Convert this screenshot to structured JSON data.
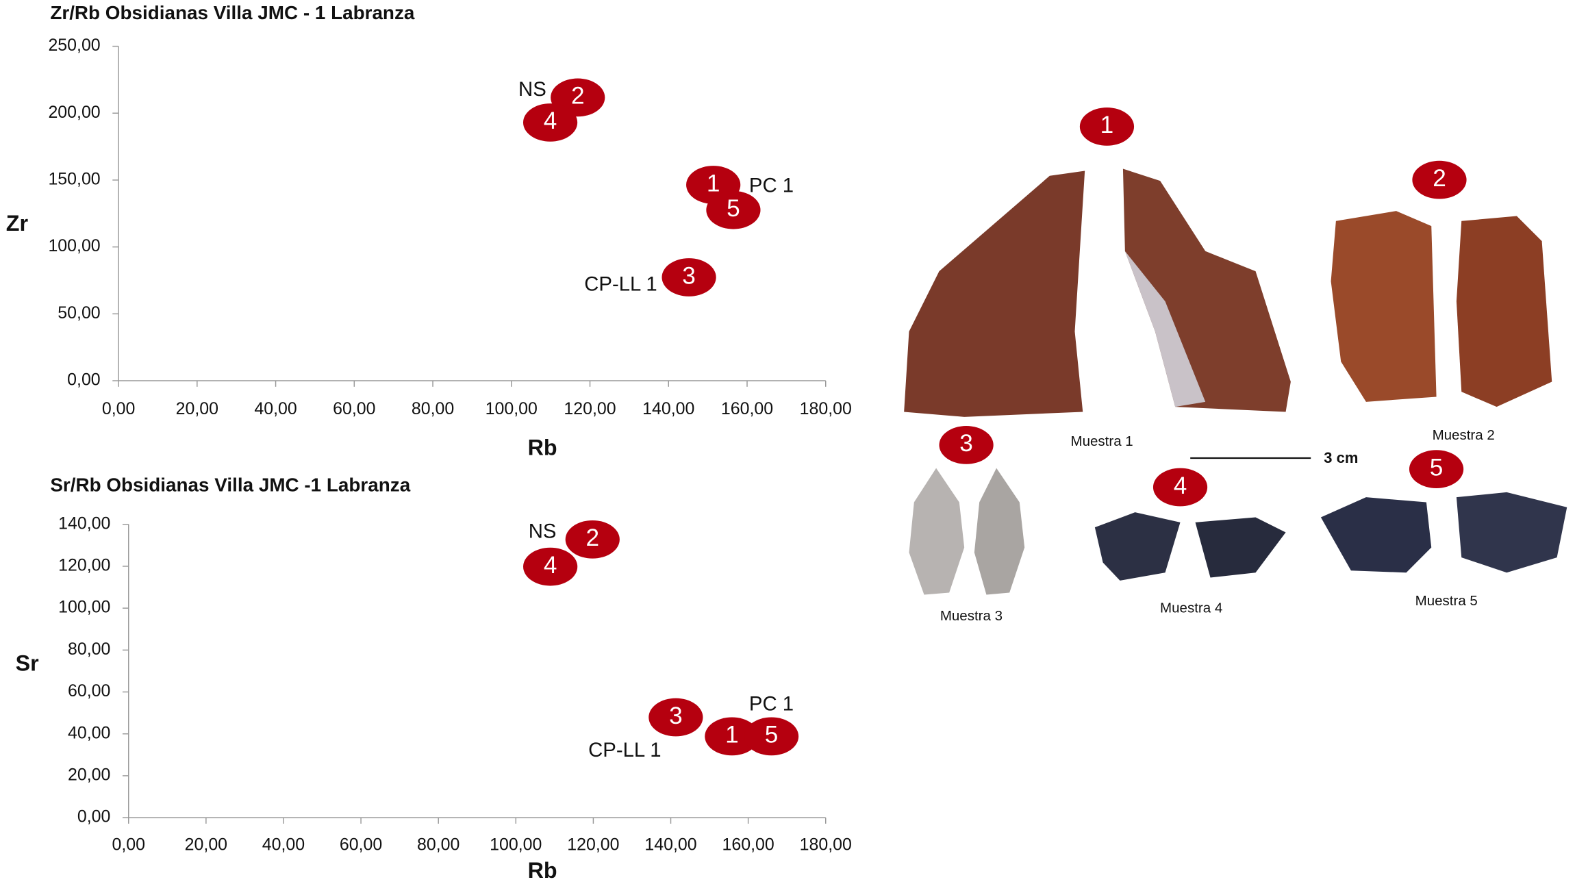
{
  "chart_data": [
    {
      "type": "scatter",
      "title": "Zr/Rb Obsidianas Villa JMC - 1 Labranza",
      "x_label": "Rb",
      "y_label": "Zr",
      "series": [
        {
          "color": "#b5000f",
          "labels": [
            "1",
            "2",
            "3",
            "4",
            "5"
          ],
          "x": [
            151.4,
            116.9,
            145.2,
            109.9,
            156.5
          ],
          "y": [
            146.4,
            211.7,
            77.3,
            193,
            127.6
          ]
        }
      ],
      "annotations": [
        "NS",
        "PC 1",
        "CP-LL 1"
      ],
      "xlim": [
        0,
        180
      ],
      "ylim": [
        0,
        250
      ],
      "xticks": [
        {
          "value": 0,
          "label": "0,00"
        },
        {
          "value": 20,
          "label": "20,00"
        },
        {
          "value": 40,
          "label": "40,00"
        },
        {
          "value": 60,
          "label": "60,00"
        },
        {
          "value": 80,
          "label": "80,00"
        },
        {
          "value": 100,
          "label": "100,00"
        },
        {
          "value": 120,
          "label": "120,00"
        },
        {
          "value": 140,
          "label": "140,00"
        },
        {
          "value": 160,
          "label": "160,00"
        },
        {
          "value": 180,
          "label": "180,00"
        }
      ],
      "yticks": [
        {
          "value": 0,
          "label": "0,00"
        },
        {
          "value": 50,
          "label": "50,00"
        },
        {
          "value": 100,
          "label": "100,00"
        },
        {
          "value": 150,
          "label": "150,00"
        },
        {
          "value": 200,
          "label": "200,00"
        },
        {
          "value": 250,
          "label": "250,00"
        }
      ]
    },
    {
      "type": "scatter",
      "title": "Sr/Rb Obsidianas Villa JMC -1 Labranza",
      "x_label": "Rb",
      "y_label": "Sr",
      "series": [
        {
          "color": "#b5000f",
          "labels": [
            "1",
            "2",
            "3",
            "4",
            "5"
          ],
          "x": [
            155.8,
            119.8,
            141.3,
            108.9,
            166
          ],
          "y": [
            38.8,
            132.8,
            47.9,
            119.8,
            38.8
          ]
        }
      ],
      "annotations": [
        "NS",
        "PC 1",
        "CP-LL 1"
      ],
      "xlim": [
        0,
        180
      ],
      "ylim": [
        0,
        140
      ],
      "xticks": [
        {
          "value": 0,
          "label": "0,00"
        },
        {
          "value": 20,
          "label": "20,00"
        },
        {
          "value": 40,
          "label": "40,00"
        },
        {
          "value": 60,
          "label": "60,00"
        },
        {
          "value": 80,
          "label": "80,00"
        },
        {
          "value": 100,
          "label": "100,00"
        },
        {
          "value": 120,
          "label": "120,00"
        },
        {
          "value": 140,
          "label": "140,00"
        },
        {
          "value": 160,
          "label": "160,00"
        },
        {
          "value": 180,
          "label": "180,00"
        }
      ],
      "yticks": [
        {
          "value": 0,
          "label": "0,00"
        },
        {
          "value": 20,
          "label": "20,00"
        },
        {
          "value": 40,
          "label": "40,00"
        },
        {
          "value": 60,
          "label": "60,00"
        },
        {
          "value": 80,
          "label": "80,00"
        },
        {
          "value": 100,
          "label": "100,00"
        },
        {
          "value": 120,
          "label": "120,00"
        },
        {
          "value": 140,
          "label": "140,00"
        }
      ]
    }
  ],
  "photo_panel": {
    "badges": [
      "1",
      "2",
      "3",
      "4",
      "5"
    ],
    "captions": [
      "Muestra 1",
      "Muestra 2",
      "Muestra 3",
      "Muestra 4",
      "Muestra 5"
    ],
    "scale_label": "3 cm"
  }
}
